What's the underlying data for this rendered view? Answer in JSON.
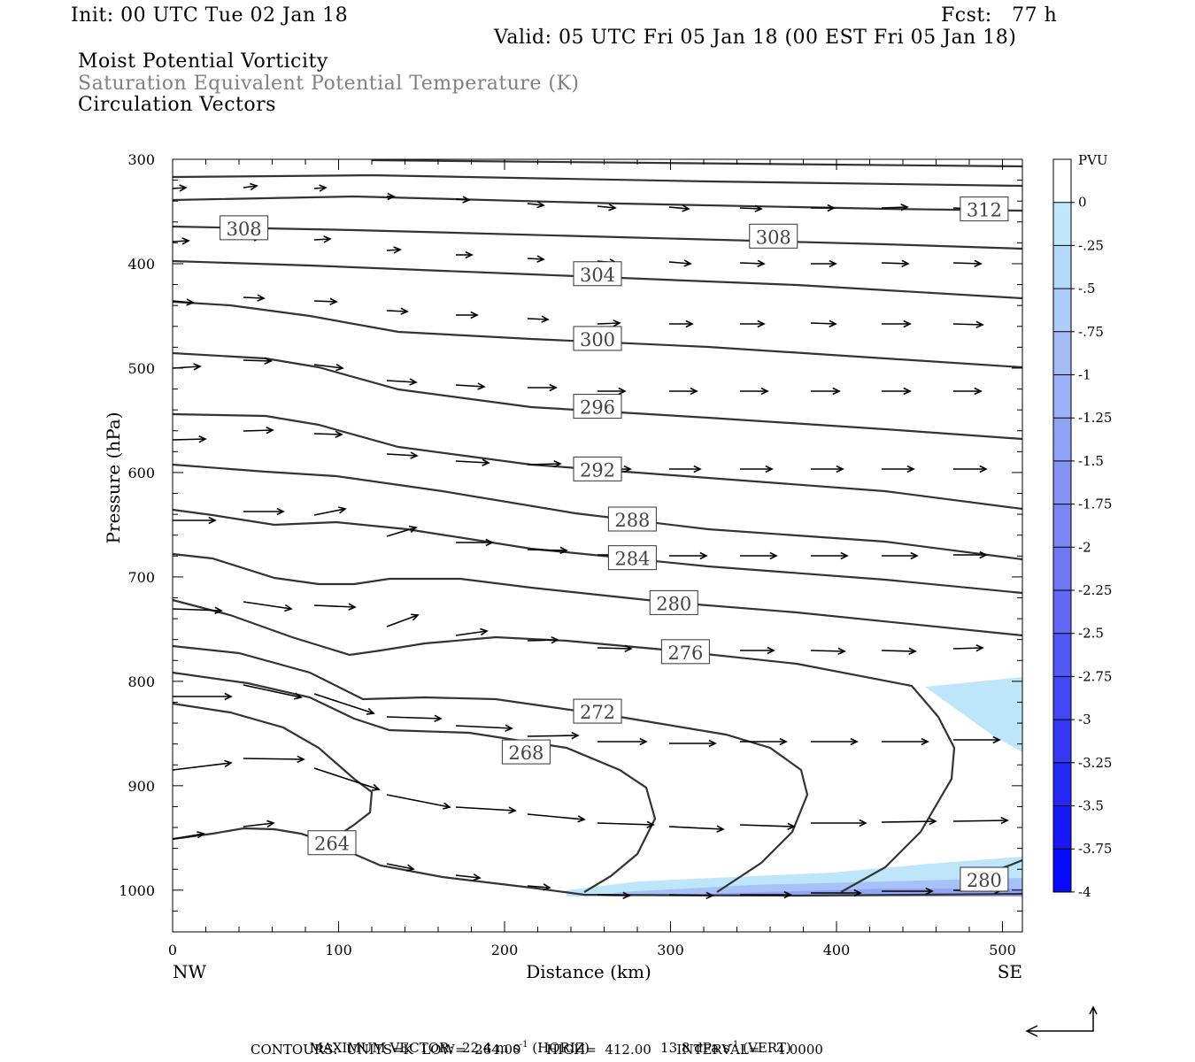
{
  "header": {
    "init": "Init: 00 UTC Tue 02 Jan 18",
    "fcst": "Fcst:   77 h",
    "valid": "Valid: 05 UTC Fri 05 Jan 18 (00 EST Fri 05 Jan 18)"
  },
  "titles": {
    "line1": "Moist Potential Vorticity",
    "line2": "Saturation Equivalent Potential Temperature (K)",
    "line3": "Circulation Vectors"
  },
  "footer": {
    "line1_a": "MAXIMUM VECTOR:  22.4 m s",
    "line1_b": "-1",
    "line1_c": " (HORIZ)",
    "line1_d": "13.8 dPa s",
    "line1_e": "-1",
    "line1_f": " (VERT)",
    "line2": "CONTOURS:  UNITS=K  LOW=  264.00      HIGH=  412.00      INTERVAL=    4.0000"
  },
  "colors": {
    "contour": "#333333",
    "vector": "#000000",
    "shade_light": "#bde6fb"
  },
  "chart_data": {
    "type": "cross-section",
    "xlabel": "Distance (km)",
    "ylabel": "Pressure (hPa)",
    "xlim": [
      0,
      512
    ],
    "ylim": [
      1040,
      300
    ],
    "y_scale": "linear-pressure",
    "x_ticks": [
      0,
      100,
      200,
      300,
      400,
      500
    ],
    "y_ticks": [
      300,
      400,
      500,
      600,
      700,
      800,
      900,
      1000
    ],
    "x_end_labels": {
      "left": "NW",
      "right": "SE"
    },
    "contour_labels": [
      {
        "text": "308",
        "x": 43,
        "p": 366
      },
      {
        "text": "312",
        "x": 489,
        "p": 348
      },
      {
        "text": "308",
        "x": 362,
        "p": 374
      },
      {
        "text": "304",
        "x": 256,
        "p": 410
      },
      {
        "text": "300",
        "x": 256,
        "p": 472
      },
      {
        "text": "296",
        "x": 256,
        "p": 537
      },
      {
        "text": "292",
        "x": 256,
        "p": 597
      },
      {
        "text": "288",
        "x": 277,
        "p": 645
      },
      {
        "text": "284",
        "x": 277,
        "p": 682
      },
      {
        "text": "280",
        "x": 302,
        "p": 725
      },
      {
        "text": "276",
        "x": 309,
        "p": 772
      },
      {
        "text": "272",
        "x": 256,
        "p": 829
      },
      {
        "text": "268",
        "x": 213,
        "p": 868
      },
      {
        "text": "264",
        "x": 96,
        "p": 955
      },
      {
        "text": "280",
        "x": 489,
        "p": 990
      }
    ],
    "colorbar": {
      "units": "PVU",
      "labels": [
        "0",
        "-.25",
        "-.5",
        "-.75",
        "-1",
        "-1.25",
        "-1.5",
        "-1.75",
        "-2",
        "-2.25",
        "-2.5",
        "-2.75",
        "-3",
        "-3.25",
        "-3.5",
        "-3.75",
        "-4"
      ],
      "colors": [
        "#ffffff",
        "#bfe7fd",
        "#b6d9fb",
        "#aecbf9",
        "#a5bdf7",
        "#9bb0f6",
        "#90a2f5",
        "#8594f4",
        "#7a86f4",
        "#6e78f4",
        "#6068f4",
        "#5258f4",
        "#4448f4",
        "#3538f4",
        "#2628f6",
        "#1818f8",
        "#0808fc"
      ]
    }
  }
}
